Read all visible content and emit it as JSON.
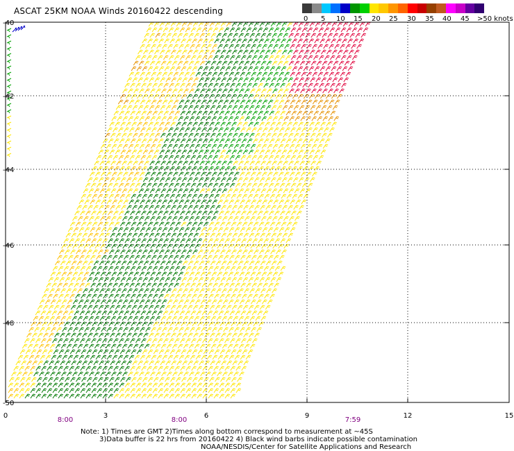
{
  "title": "ASCAT 25KM NOAA Winds 20160422 descending",
  "legend": {
    "labels": [
      "0",
      "5",
      "10",
      "15",
      "20",
      "25",
      "30",
      "35",
      "40",
      "45",
      ">50 knots"
    ],
    "colors": [
      "#3a3a3a",
      "#8a8a8a",
      "#00c8ff",
      "#0070ff",
      "#0000c8",
      "#009600",
      "#00d000",
      "#ffe600",
      "#ffc800",
      "#ff9600",
      "#ff6400",
      "#ff0000",
      "#c80000",
      "#964000",
      "#c05a20",
      "#ff00ff",
      "#c800c8",
      "#6400a0",
      "#300070"
    ]
  },
  "axes": {
    "x_ticks": [
      "0",
      "3",
      "6",
      "9",
      "12",
      "15"
    ],
    "y_ticks": [
      "-40",
      "-42",
      "-44",
      "-46",
      "-48",
      "-50"
    ],
    "time_labels": [
      "8:00",
      "8:00",
      "7:59"
    ]
  },
  "note": {
    "line1": "Note: 1) Times are GMT 2)Times along bottom correspond to measurement at ~45S",
    "line2": "3)Data buffer is 22 hrs from 20160422 4) Black wind barbs indicate possible contamination",
    "line3": "NOAA/NESDIS/Center for Satellite Applications and Research"
  },
  "colors": {
    "green_dark": "#007800",
    "green": "#00a000",
    "yellow": "#ffe600",
    "yellow_orange": "#ffc000",
    "orange": "#e69100",
    "orange_red": "#d26400",
    "red": "#e0003a",
    "blue": "#0000c8",
    "time_label": "#800080"
  }
}
